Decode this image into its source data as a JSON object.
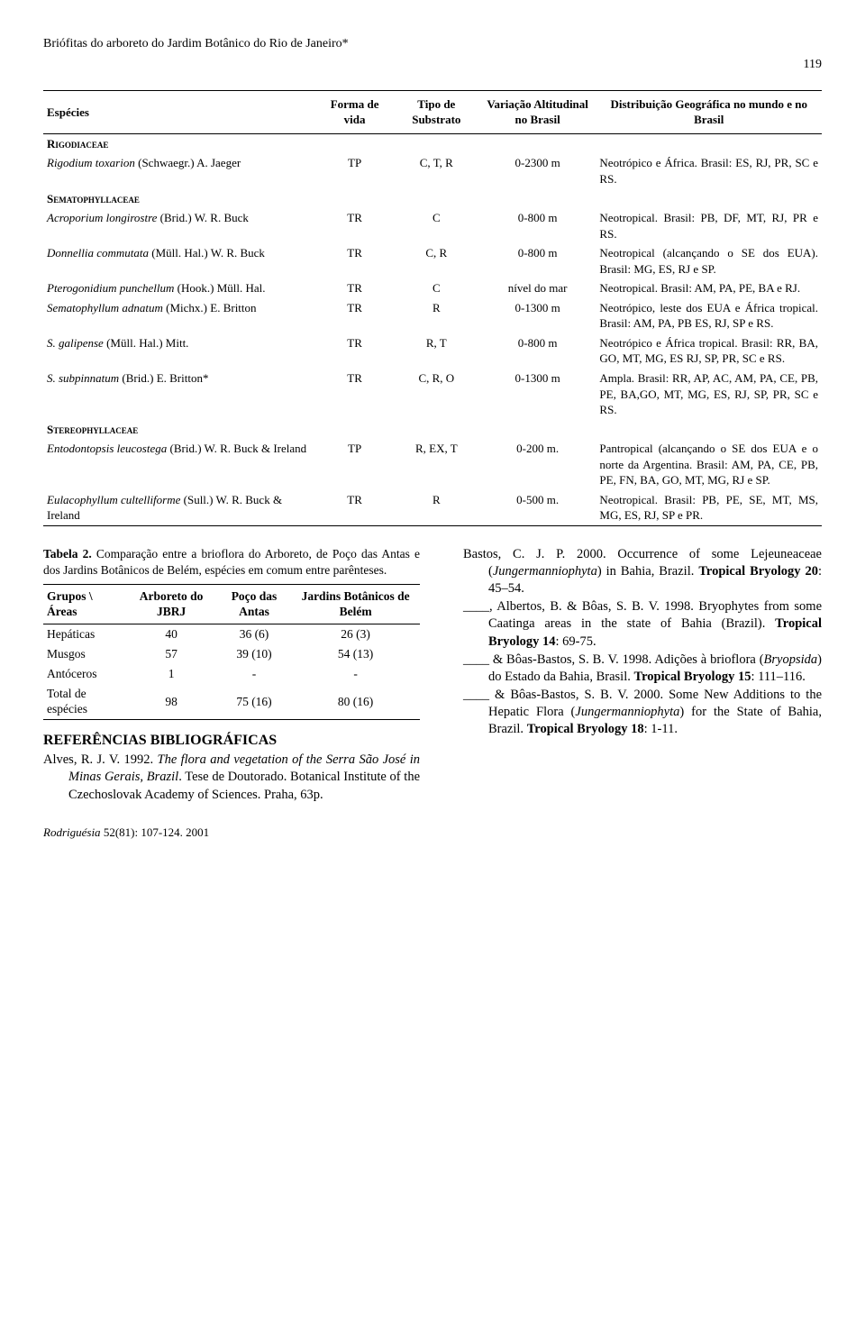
{
  "running_head": "Briófitas do arboreto do Jardim Botânico do Rio de Janeiro*",
  "page_number": "119",
  "species_table": {
    "headers": {
      "c0": "Espécies",
      "c1": "Forma de vida",
      "c2": "Tipo de Substrato",
      "c3": "Variação Altitudinal no Brasil",
      "c4": "Distribuição Geográfica no mundo e no Brasil"
    },
    "rows": [
      {
        "family": "Rigodiaceae"
      },
      {
        "sp_i": "Rigodium toxarion",
        "sp_r": " (Schwaegr.) A. Jaeger",
        "fv": "TP",
        "ts": "C, T, R",
        "va": "0-2300 m",
        "dist": "Neotrópico e África. Brasil: ES, RJ, PR, SC e RS."
      },
      {
        "family": "Sematophyllaceae"
      },
      {
        "sp_i": "Acroporium longirostre",
        "sp_r": " (Brid.) W. R. Buck",
        "fv": "TR",
        "ts": "C",
        "va": "0-800 m",
        "dist": "Neotropical. Brasil: PB, DF, MT, RJ, PR e RS."
      },
      {
        "sp_i": "Donnellia commutata",
        "sp_r": " (Müll. Hal.) W. R. Buck",
        "fv": "TR",
        "ts": "C, R",
        "va": "0-800 m",
        "dist": "Neotropical (alcançando o SE dos EUA). Brasil: MG, ES, RJ e SP."
      },
      {
        "sp_i": "Pterogonidium punchellum",
        "sp_r": " (Hook.) Müll. Hal.",
        "fv": "TR",
        "ts": "C",
        "va": "nível do mar",
        "dist": "Neotropical. Brasil: AM, PA, PE, BA e RJ."
      },
      {
        "sp_i": "Sematophyllum adnatum",
        "sp_r": " (Michx.) E. Britton",
        "fv": "TR",
        "ts": "R",
        "va": "0-1300 m",
        "dist": "Neotrópico, leste dos EUA e África tropical. Brasil: AM, PA, PB ES, RJ, SP e RS."
      },
      {
        "sp_i": "S. galipense",
        "sp_r": " (Müll. Hal.) Mitt.",
        "fv": "TR",
        "ts": "R, T",
        "va": "0-800 m",
        "dist": "Neotrópico e África tropical. Brasil: RR, BA, GO, MT, MG, ES RJ, SP, PR, SC e RS."
      },
      {
        "sp_i": "S. subpinnatum",
        "sp_r": " (Brid.) E. Britton*",
        "fv": "TR",
        "ts": "C, R, O",
        "va": "0-1300 m",
        "dist": "Ampla. Brasil: RR, AP, AC, AM, PA, CE, PB, PE, BA,GO, MT, MG, ES, RJ, SP, PR, SC e RS."
      },
      {
        "family": "Stereophyllaceae"
      },
      {
        "sp_i": "Entodontopsis leucostega",
        "sp_r": " (Brid.) W. R. Buck & Ireland",
        "fv": "TP",
        "ts": "R, EX, T",
        "va": "0-200 m.",
        "dist": "Pantropical (alcançando o SE dos EUA e o norte da Argentina. Brasil: AM, PA, CE, PB, PE, FN, BA, GO, MT, MG, RJ e SP."
      },
      {
        "sp_i": "Eulacophyllum cultelliforme",
        "sp_r": " (Sull.) W. R. Buck & Ireland",
        "fv": "TR",
        "ts": "R",
        "va": "0-500 m.",
        "dist": "Neotropical. Brasil: PB, PE, SE, MT, MS, MG, ES, RJ, SP e PR."
      }
    ]
  },
  "tab2": {
    "caption_b": "Tabela 2.",
    "caption": " Comparação entre a brioflora do Arboreto, de Poço das Antas e dos Jardins Botânicos de Belém, espécies em comum entre parênteses.",
    "headers": {
      "c0": "Grupos \\ Áreas",
      "c1": "Arboreto do JBRJ",
      "c2": "Poço das Antas",
      "c3": "Jardins Botânicos de Belém"
    },
    "rows": [
      {
        "g": "Hepáticas",
        "a": "40",
        "p": "36 (6)",
        "b": "26 (3)"
      },
      {
        "g": "Musgos",
        "a": "57",
        "p": "39 (10)",
        "b": "54 (13)"
      },
      {
        "g": "Antóceros",
        "a": "1",
        "p": "-",
        "b": "-"
      },
      {
        "g": "Total de espécies",
        "a": "98",
        "p": "75 (16)",
        "b": "80 (16)"
      }
    ]
  },
  "refs_title": "REFERÊNCIAS BIBLIOGRÁFICAS",
  "ref_left_author": "Alves, R. J. V. 1992. ",
  "ref_left_title_i": "The flora and vegetation of the Serra São José in Minas Gerais, Brazil",
  "ref_left_tail": ". Tese de Doutorado. Botanical Institute of the Czechoslovak Academy of Sciences. Praha, 63p.",
  "right_refs": [
    {
      "pre": "Bastos, C. J. P. 2000. Occurrence of some Lejeuneaceae (",
      "i1": "Jungermanniophyta",
      "mid1": ") in Bahia, Brazil. ",
      "b": "Tropical Bryology 20",
      "post": ": 45–54."
    },
    {
      "pre": "____, Albertos, B. & Bôas, S. B. V. 1998. Bryophytes from some Caatinga areas in the state of Bahia (Brazil). ",
      "b": "Tropical Bryology 14",
      "post": ": 69-75."
    },
    {
      "pre": "____ & Bôas-Bastos, S. B. V. 1998. Adições à brioflora (",
      "i1": "Bryopsida",
      "mid1": ") do Estado da Bahia, Brasil. ",
      "b": "Tropical Bryology 15",
      "post": ": 111–116."
    },
    {
      "pre": "____ & Bôas-Bastos, S. B. V. 2000. Some New Additions to the Hepatic Flora (",
      "i1": "Jungermanniophyta",
      "mid1": ") for the State of Bahia, Brazil. ",
      "b": "Tropical Bryology 18",
      "post": ": 1-11."
    }
  ],
  "footer_i": "Rodriguésia",
  "footer_r": " 52(81): 107-124. 2001"
}
